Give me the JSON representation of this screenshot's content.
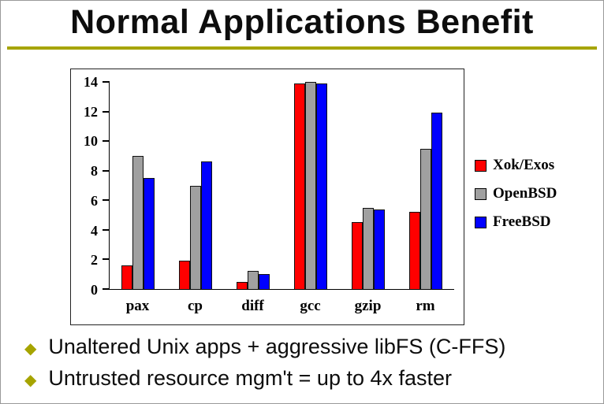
{
  "slide": {
    "title": "Normal Applications Benefit",
    "accent_color": "#a6a400",
    "bullets": [
      "Unaltered Unix apps + aggressive libFS (C-FFS)",
      "Untrusted resource mgm't = up to 4x faster"
    ]
  },
  "chart_data": {
    "type": "bar",
    "categories": [
      "pax",
      "cp",
      "diff",
      "gcc",
      "gzip",
      "rm"
    ],
    "series": [
      {
        "name": "Xok/Exos",
        "color": "#ff0000",
        "values": [
          1.6,
          1.9,
          0.5,
          13.9,
          4.5,
          5.2
        ]
      },
      {
        "name": "OpenBSD",
        "color": "#a0a0a0",
        "values": [
          9.0,
          7.0,
          1.2,
          14.0,
          5.5,
          9.5
        ]
      },
      {
        "name": "FreeBSD",
        "color": "#0000ff",
        "values": [
          7.5,
          8.6,
          1.0,
          13.9,
          5.4,
          11.9
        ]
      }
    ],
    "ylim": [
      0,
      14
    ],
    "yticks": [
      0,
      2,
      4,
      6,
      8,
      10,
      12,
      14
    ],
    "legend_position": "right",
    "grid": false
  }
}
